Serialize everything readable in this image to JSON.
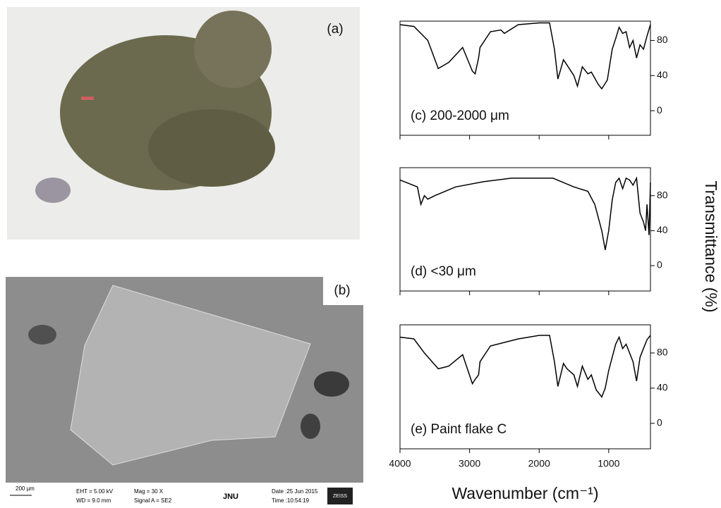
{
  "images": {
    "photo_label": "(a)",
    "sem_label": "(b)",
    "sem_info": {
      "scale": "200 µm",
      "eht": "EHT = 5.00 kV",
      "wd": "WD = 9.0 mm",
      "mag": "Mag = 30 X",
      "signal": "Signal A = SE2",
      "lab": "JNU",
      "date": "Date :25 Jun 2015",
      "time": "Time :10:54:19",
      "brand": "ZEISS"
    }
  },
  "chart_data": [
    {
      "type": "line",
      "label": "(c) 200-2000 μm",
      "color": "#000000",
      "x": [
        4000,
        3800,
        3600,
        3450,
        3300,
        3100,
        2960,
        2920,
        2870,
        2850,
        2700,
        2550,
        2500,
        2300,
        2000,
        1850,
        1780,
        1730,
        1650,
        1600,
        1500,
        1450,
        1380,
        1300,
        1250,
        1150,
        1100,
        1020,
        950,
        900,
        850,
        800,
        750,
        700,
        650,
        600,
        550,
        500,
        450,
        400
      ],
      "values": [
        98,
        96,
        80,
        48,
        55,
        72,
        45,
        42,
        60,
        72,
        90,
        92,
        88,
        98,
        100,
        100,
        70,
        36,
        58,
        52,
        40,
        28,
        50,
        42,
        44,
        30,
        25,
        35,
        70,
        82,
        95,
        88,
        90,
        72,
        80,
        60,
        75,
        70,
        85,
        98
      ],
      "xlim": [
        4000,
        400
      ],
      "xticks": [
        4000,
        3000,
        2000,
        1000
      ],
      "ylim": [
        -28,
        102
      ],
      "yticks": [
        0,
        40,
        80
      ]
    },
    {
      "type": "line",
      "label": "(d) <30 μm",
      "color": "#000000",
      "ylabel": "Transmittance (%)",
      "x": [
        4000,
        3750,
        3700,
        3650,
        3600,
        3500,
        3200,
        2800,
        2400,
        1800,
        1500,
        1300,
        1200,
        1100,
        1050,
        1000,
        950,
        900,
        850,
        800,
        750,
        700,
        650,
        600,
        550,
        500,
        470,
        450,
        420,
        400
      ],
      "values": [
        98,
        90,
        70,
        80,
        76,
        80,
        90,
        96,
        100,
        100,
        90,
        85,
        70,
        40,
        18,
        40,
        75,
        95,
        100,
        88,
        100,
        98,
        92,
        100,
        60,
        50,
        40,
        70,
        35,
        95
      ],
      "xlim": [
        4000,
        400
      ],
      "xticks": [
        4000,
        3000,
        2000,
        1000
      ],
      "ylim": [
        -29,
        112
      ],
      "yticks": [
        0,
        40,
        80
      ]
    },
    {
      "type": "line",
      "label": "(e) Paint flake C",
      "color": "#000000",
      "xlabel": "Wavenumber (cm⁻¹)",
      "x": [
        4000,
        3800,
        3650,
        3450,
        3300,
        3100,
        2960,
        2920,
        2870,
        2850,
        2700,
        2500,
        2300,
        2000,
        1850,
        1780,
        1730,
        1650,
        1600,
        1500,
        1450,
        1380,
        1300,
        1250,
        1180,
        1100,
        1050,
        1000,
        900,
        850,
        800,
        750,
        700,
        650,
        600,
        550,
        500,
        450,
        400
      ],
      "values": [
        98,
        96,
        80,
        62,
        65,
        78,
        45,
        50,
        55,
        70,
        88,
        92,
        96,
        100,
        100,
        70,
        42,
        68,
        62,
        55,
        42,
        65,
        50,
        55,
        38,
        30,
        40,
        60,
        90,
        98,
        85,
        90,
        80,
        70,
        48,
        75,
        85,
        95,
        100
      ],
      "xlim": [
        4000,
        400
      ],
      "xticks": [
        4000,
        3000,
        2000,
        1000
      ],
      "ylim": [
        -29,
        112
      ],
      "yticks": [
        0,
        40,
        80
      ]
    }
  ]
}
